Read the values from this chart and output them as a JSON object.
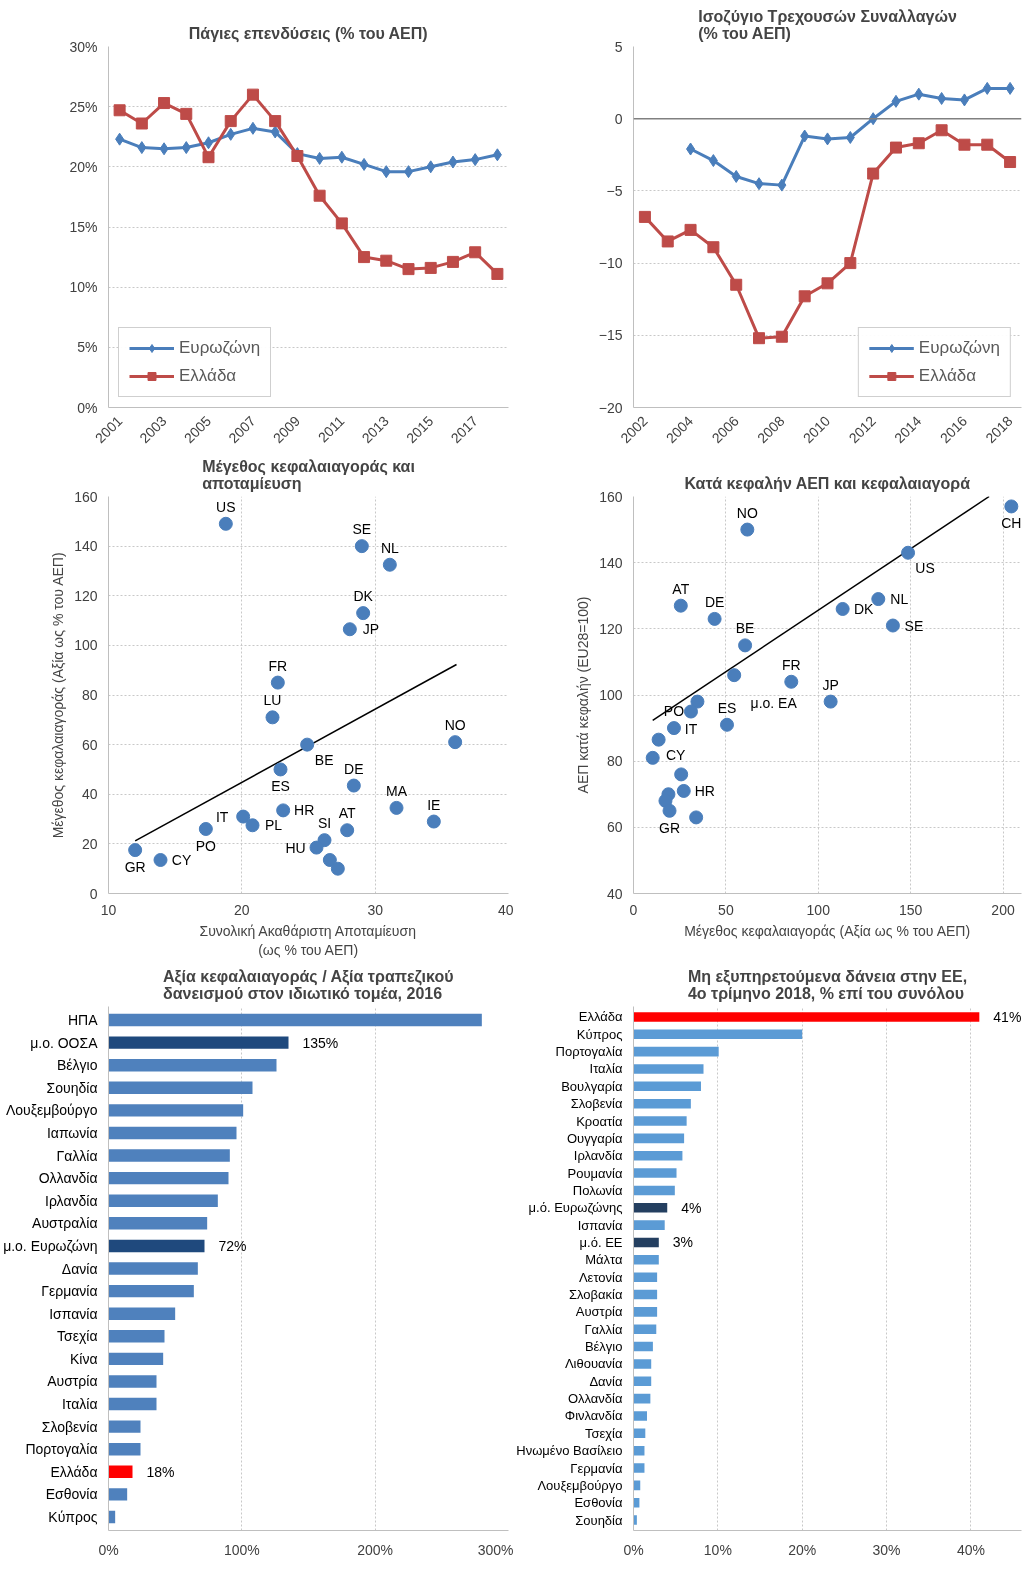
{
  "chart_data": [
    {
      "type": "line",
      "title": "Πάγιες επενδύσεις (% του ΑΕΠ)",
      "x": [
        2001,
        2002,
        2003,
        2004,
        2005,
        2006,
        2007,
        2008,
        2009,
        2010,
        2011,
        2012,
        2013,
        2014,
        2015,
        2016,
        2017,
        2018
      ],
      "series": [
        {
          "name": "Ευρωζώνη",
          "color": "#4a7ebb",
          "marker": "diamond",
          "values": [
            22.3,
            21.6,
            21.5,
            21.6,
            22.0,
            22.7,
            23.2,
            22.9,
            21.1,
            20.7,
            20.8,
            20.2,
            19.6,
            19.6,
            20.0,
            20.4,
            20.6,
            21.0
          ]
        },
        {
          "name": "Ελλάδα",
          "color": "#be4b48",
          "marker": "square",
          "values": [
            24.7,
            23.6,
            25.3,
            24.4,
            20.8,
            23.8,
            26.0,
            23.8,
            20.9,
            17.6,
            15.3,
            12.5,
            12.2,
            11.5,
            11.6,
            12.1,
            12.9,
            11.1
          ]
        }
      ],
      "xlim": [
        2000.5,
        2018.5
      ],
      "xticks": [
        2001,
        2003,
        2005,
        2007,
        2009,
        2011,
        2013,
        2015,
        2017
      ],
      "ylim": [
        0,
        30
      ],
      "yticks": [
        {
          "value": 0,
          "label": "0%"
        },
        {
          "value": 5,
          "label": "5%"
        },
        {
          "value": 10,
          "label": "10%"
        },
        {
          "value": 15,
          "label": "15%"
        },
        {
          "value": 20,
          "label": "20%"
        },
        {
          "value": 25,
          "label": "25%"
        },
        {
          "value": 30,
          "label": "30%"
        }
      ],
      "grid": "y",
      "legend": "bottom left",
      "line_style": "solid"
    },
    {
      "type": "line",
      "title": "Ισοζύγιο Τρεχουσών Συναλλαγών\n(% του ΑΕΠ)",
      "series": [
        {
          "name": "Ευρωζώνη",
          "color": "#4a7ebb",
          "marker": "diamond",
          "x": [
            2004,
            2005,
            2006,
            2007,
            2008,
            2009,
            2010,
            2011,
            2012,
            2013,
            2014,
            2015,
            2016,
            2017,
            2018
          ],
          "values": [
            -2.1,
            -2.9,
            -4.0,
            -4.5,
            -4.6,
            -1.2,
            -1.4,
            -1.3,
            0.0,
            1.2,
            1.7,
            1.4,
            1.3,
            2.1,
            2.1
          ]
        },
        {
          "name": "Ελλάδα",
          "color": "#be4b48",
          "marker": "square",
          "x": [
            2002,
            2003,
            2004,
            2005,
            2006,
            2007,
            2008,
            2009,
            2010,
            2011,
            2012,
            2013,
            2014,
            2015,
            2016,
            2017,
            2018
          ],
          "values": [
            -6.8,
            -8.5,
            -7.7,
            -8.9,
            -11.5,
            -15.2,
            -15.1,
            -12.3,
            -11.4,
            -10.0,
            -3.8,
            -2.0,
            -1.7,
            -0.8,
            -1.8,
            -1.8,
            -3.0
          ]
        }
      ],
      "xlim": [
        2001.5,
        2018.5
      ],
      "xticks": [
        2002,
        2004,
        2006,
        2008,
        2010,
        2012,
        2014,
        2016,
        2018
      ],
      "ylim": [
        -20,
        5
      ],
      "yticks": [
        -20,
        -15,
        -10,
        -5,
        0,
        5
      ],
      "ref_lines": [
        {
          "axis": "y",
          "value": 0,
          "color": "#808080"
        }
      ],
      "grid": "y",
      "legend": "bottom right",
      "line_style": "solid"
    },
    {
      "type": "scatter",
      "title": "Μέγεθος κεφαλαιαγοράς και\nαποταμίευση",
      "xlabel": "Συνολική Ακαθάριστη Αποταμίευση\n(ως % του ΑΕΠ)",
      "ylabel": "Μέγεθος κεφαλαιαγοράς (Αξία ως % του ΑΕΠ)",
      "series": [
        {
          "color": "#4a7ebb",
          "x": [
            18.8,
            29.0,
            31.1,
            29.1,
            28.1,
            22.7,
            22.3,
            24.9,
            22.9,
            28.4,
            36.0,
            31.6,
            34.4,
            23.1,
            27.9,
            26.2,
            25.6,
            26.6,
            27.2,
            20.1,
            20.8,
            17.3,
            13.9,
            12.0
          ],
          "values": [
            149,
            140,
            132.5,
            113,
            106.5,
            85,
            71,
            60,
            50,
            43.5,
            61,
            34.5,
            29,
            33.5,
            25.5,
            21.5,
            18.5,
            13.5,
            10,
            31,
            27.5,
            26,
            13.5,
            17.5
          ]
        },
        {
          "type": "line",
          "color": "#000000",
          "x": [
            12.0,
            36.1
          ],
          "values": [
            21.2,
            92.3
          ]
        }
      ],
      "annotations": [
        {
          "text": "US",
          "x": 18.8,
          "y": 149
        },
        {
          "text": "SE",
          "x": 29.0,
          "y": 140
        },
        {
          "text": "NL",
          "x": 31.1,
          "y": 132.5
        },
        {
          "text": "DK",
          "x": 29.1,
          "y": 113
        },
        {
          "text": "JP",
          "x": 28.1,
          "y": 106.5
        },
        {
          "text": "FR",
          "x": 22.7,
          "y": 85
        },
        {
          "text": "LU",
          "x": 22.3,
          "y": 71
        },
        {
          "text": "BE",
          "x": 24.9,
          "y": 60
        },
        {
          "text": "ES",
          "x": 22.9,
          "y": 50
        },
        {
          "text": "DE",
          "x": 28.4,
          "y": 43.5
        },
        {
          "text": "NO",
          "x": 36.0,
          "y": 61
        },
        {
          "text": "HR",
          "x": 23.1,
          "y": 33.5
        },
        {
          "text": "MA",
          "x": 31.6,
          "y": 34.5
        },
        {
          "text": "IE",
          "x": 34.4,
          "y": 29
        },
        {
          "text": "IT",
          "x": 20.1,
          "y": 31
        },
        {
          "text": "PL",
          "x": 20.8,
          "y": 27.5
        },
        {
          "text": "PO",
          "x": 17.3,
          "y": 26
        },
        {
          "text": "AT",
          "x": 27.9,
          "y": 25.5
        },
        {
          "text": "HU",
          "x": 25.6,
          "y": 18.5
        },
        {
          "text": "SI",
          "x": 26.2,
          "y": 21.5
        },
        {
          "text": "CY",
          "x": 13.9,
          "y": 13.5
        },
        {
          "text": "GR",
          "x": 12.0,
          "y": 17.5
        }
      ],
      "xlim": [
        10,
        40
      ],
      "xticks": [
        10,
        20,
        30,
        40
      ],
      "ylim": [
        0,
        160
      ],
      "yticks": [
        0,
        20,
        40,
        60,
        80,
        100,
        120,
        140,
        160
      ],
      "grid": true
    },
    {
      "type": "scatter",
      "title": "Κατά κεφαλήν ΑΕΠ και κεφαλαιαγορά",
      "xlabel": "Μέγεθος κεφαλαιαγοράς (Αξία ως % του ΑΕΠ)",
      "ylabel": "ΑΕΠ κατά κεφαλήν (EU28=100)",
      "series": [
        {
          "color": "#4a7ebb",
          "x": [
            61.6,
            204.5,
            148.6,
            132.5,
            113.2,
            140.4,
            25.6,
            43.9,
            60.4,
            54.5,
            85.4,
            106.7,
            34.6,
            31.1,
            50.6,
            21.9,
            13.6,
            10.4,
            25.8,
            27.2,
            18.9,
            17.3,
            19.5,
            33.9
          ],
          "values": [
            150,
            157,
            143,
            129,
            126,
            121,
            127,
            123,
            115,
            106,
            104,
            98,
            98,
            95,
            91,
            90,
            86.5,
            81,
            76,
            71,
            70,
            68,
            65,
            63
          ]
        },
        {
          "type": "line",
          "color": "#000000",
          "x": [
            10.4,
            192.5
          ],
          "values": [
            92.3,
            160
          ]
        }
      ],
      "annotations": [
        {
          "text": "NO",
          "x": 61.6,
          "y": 150
        },
        {
          "text": "CH",
          "x": 204.5,
          "y": 157
        },
        {
          "text": "US",
          "x": 148.6,
          "y": 143
        },
        {
          "text": "NL",
          "x": 132.5,
          "y": 129
        },
        {
          "text": "DK",
          "x": 113.2,
          "y": 126
        },
        {
          "text": "SE",
          "x": 140.4,
          "y": 121
        },
        {
          "text": "AT",
          "x": 25.6,
          "y": 127
        },
        {
          "text": "DE",
          "x": 43.9,
          "y": 123
        },
        {
          "text": "BE",
          "x": 60.4,
          "y": 115
        },
        {
          "text": "μ.ο. EA",
          "x": 54.5,
          "y": 106
        },
        {
          "text": "FR",
          "x": 85.4,
          "y": 104
        },
        {
          "text": "JP",
          "x": 106.7,
          "y": 98
        },
        {
          "text": "IT",
          "x": 31.1,
          "y": 95
        },
        {
          "text": "ES",
          "x": 50.6,
          "y": 91
        },
        {
          "text": "CY",
          "x": 13.6,
          "y": 86.5
        },
        {
          "text": "PO",
          "x": 21.9,
          "y": 90
        },
        {
          "text": "HR",
          "x": 27.2,
          "y": 71
        },
        {
          "text": "GR",
          "x": 19.5,
          "y": 65
        }
      ],
      "xlim": [
        0,
        210
      ],
      "xticks": [
        0,
        50,
        100,
        150,
        200
      ],
      "ylim": [
        40,
        160
      ],
      "yticks": [
        40,
        60,
        80,
        100,
        120,
        140,
        160
      ],
      "grid": true
    },
    {
      "type": "bar",
      "orientation": "horizontal",
      "title": "Αξία κεφαλαιαγοράς / Αξία τραπεζικού\nδανεισμού στον ιδιωτικό τομέα, 2016",
      "categories": [
        "ΗΠΑ",
        "μ.ο. ΟΟΣΑ",
        "Βέλγιο",
        "Σουηδία",
        "Λουξεμβούργο",
        "Ιαπωνία",
        "Γαλλία",
        "Ολλανδία",
        "Ιρλανδία",
        "Αυστραλία",
        "μ.ο. Ευρωζώνη",
        "Δανία",
        "Γερμανία",
        "Ισπανία",
        "Τσεχία",
        "Κίνα",
        "Αυστρία",
        "Ιταλία",
        "Σλοβενία",
        "Πορτογαλία",
        "Ελλάδα",
        "Εσθονία",
        "Κύπρος"
      ],
      "values": [
        280,
        135,
        126,
        108,
        101,
        96,
        91,
        90,
        82,
        74,
        72,
        67,
        64,
        50,
        42,
        41,
        36,
        36,
        24,
        24,
        18,
        14,
        5
      ],
      "colors": [
        "#4f81bd",
        "#1f497d",
        "#4f81bd",
        "#4f81bd",
        "#4f81bd",
        "#4f81bd",
        "#4f81bd",
        "#4f81bd",
        "#4f81bd",
        "#4f81bd",
        "#1f497d",
        "#4f81bd",
        "#4f81bd",
        "#4f81bd",
        "#4f81bd",
        "#4f81bd",
        "#4f81bd",
        "#4f81bd",
        "#4f81bd",
        "#4f81bd",
        "#ff0000",
        "#4f81bd",
        "#4f81bd"
      ],
      "value_labels": [
        null,
        "135%",
        null,
        null,
        null,
        null,
        null,
        null,
        null,
        null,
        "72%",
        null,
        null,
        null,
        null,
        null,
        null,
        null,
        null,
        null,
        "18%",
        null,
        null
      ],
      "xlim": [
        0,
        300
      ],
      "xticks": [
        {
          "value": 0,
          "label": "0%"
        },
        {
          "value": 100,
          "label": "100%"
        },
        {
          "value": 200,
          "label": "200%"
        },
        {
          "value": 300,
          "label": "300%"
        }
      ],
      "grid": "x"
    },
    {
      "type": "bar",
      "orientation": "horizontal",
      "title": "Μη εξυπηρετούμενα δάνεια στην ΕΕ,\n4ο τρίμηνο 2018, % επί του συνόλου",
      "categories": [
        "Ελλάδα",
        "Κύπρος",
        "Πορτογαλία",
        "Ιταλία",
        "Βουλγαρία",
        "Σλοβενία",
        "Κροατία",
        "Ουγγαρία",
        "Ιρλανδία",
        "Ρουμανία",
        "Πολωνία",
        "μ.ό. Ευρωζώνης",
        "Ισπανία",
        "μ.ό. ΕΕ",
        "Μάλτα",
        "Λετονία",
        "Σλοβακία",
        "Αυστρία",
        "Γαλλία",
        "Βέλγιο",
        "Λιθουανία",
        "Δανία",
        "Ολλανδία",
        "Φινλανδία",
        "Τσεχία",
        "Ηνωμένο Βασίλειο",
        "Γερμανία",
        "Λουξεμβούργο",
        "Εσθονία",
        "Σουηδία"
      ],
      "values": [
        41,
        20.0,
        10.1,
        8.3,
        8.0,
        6.8,
        6.3,
        6.0,
        5.8,
        5.1,
        4.9,
        4,
        3.7,
        3,
        3.0,
        2.8,
        2.8,
        2.8,
        2.7,
        2.3,
        2.1,
        2.1,
        2.0,
        1.6,
        1.4,
        1.3,
        1.3,
        0.8,
        0.7,
        0.4
      ],
      "colors": [
        "#ff0000",
        "#5b9bd5",
        "#5b9bd5",
        "#5b9bd5",
        "#5b9bd5",
        "#5b9bd5",
        "#5b9bd5",
        "#5b9bd5",
        "#5b9bd5",
        "#5b9bd5",
        "#5b9bd5",
        "#243f60",
        "#5b9bd5",
        "#243f60",
        "#5b9bd5",
        "#5b9bd5",
        "#5b9bd5",
        "#5b9bd5",
        "#5b9bd5",
        "#5b9bd5",
        "#5b9bd5",
        "#5b9bd5",
        "#5b9bd5",
        "#5b9bd5",
        "#5b9bd5",
        "#5b9bd5",
        "#5b9bd5",
        "#5b9bd5",
        "#5b9bd5",
        "#5b9bd5"
      ],
      "value_labels": [
        "41%",
        null,
        null,
        null,
        null,
        null,
        null,
        null,
        null,
        null,
        null,
        "4%",
        null,
        "3%",
        null,
        null,
        null,
        null,
        null,
        null,
        null,
        null,
        null,
        null,
        null,
        null,
        null,
        null,
        null,
        null
      ],
      "xlim": [
        0,
        46
      ],
      "xticks": [
        {
          "value": 0,
          "label": "0%"
        },
        {
          "value": 10,
          "label": "10%"
        },
        {
          "value": 20,
          "label": "20%"
        },
        {
          "value": 30,
          "label": "30%"
        },
        {
          "value": 40,
          "label": "40%"
        }
      ],
      "grid": "x"
    }
  ]
}
